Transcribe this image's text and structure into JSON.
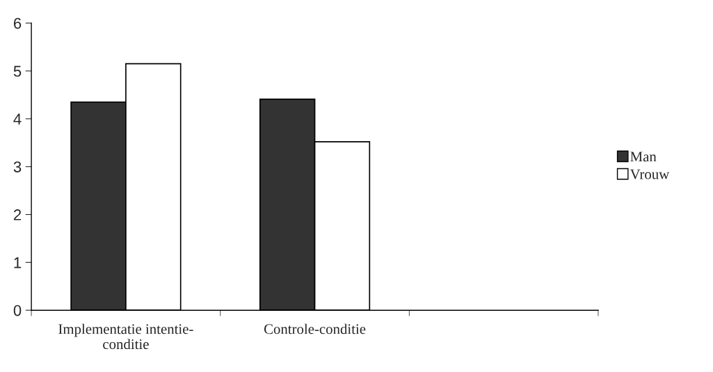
{
  "chart_data": {
    "type": "bar",
    "categories": [
      "Implementatie intentie-\nconditie",
      "Controle-conditie",
      null
    ],
    "series": [
      {
        "name": "Man",
        "color": "#333333",
        "values": [
          4.35,
          4.41,
          null
        ]
      },
      {
        "name": "Vrouw",
        "color": "#ffffff",
        "values": [
          5.15,
          3.52,
          null
        ]
      }
    ],
    "ylim": [
      0,
      6
    ],
    "yticks": [
      0,
      1,
      2,
      3,
      4,
      5,
      6
    ],
    "grid": false,
    "legend": "right"
  }
}
